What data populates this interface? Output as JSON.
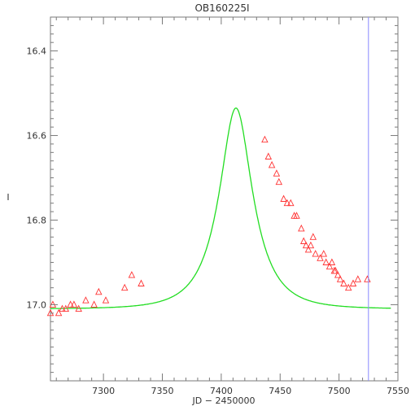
{
  "chart_data": {
    "type": "scatter",
    "title": "OB160225I",
    "xlabel": "JD − 2450000",
    "ylabel": "I",
    "xlim": [
      7255,
      7550
    ],
    "ylim": [
      17.18,
      16.32
    ],
    "y_inverted": true,
    "x_ticks": [
      7300,
      7350,
      7400,
      7450,
      7500,
      7550
    ],
    "x_tick_labels": [
      "7300",
      "7350",
      "7400",
      "7450",
      "7500",
      "7550"
    ],
    "y_ticks": [
      16.4,
      16.6,
      16.8,
      17.0
    ],
    "y_tick_labels": [
      "16.4",
      "16.6",
      "16.8",
      "17.0"
    ],
    "grid": false,
    "colors": {
      "data": "#ff3333",
      "model": "#22dd22",
      "marker_line": "#8888ff",
      "frame": "#7a7a7a"
    },
    "vertical_line_x": 7525,
    "model": {
      "t0": 7412.5,
      "baseline": 17.01,
      "peak": 16.535,
      "tE": 30,
      "u0": 0.49
    },
    "series": [
      {
        "marker": "open-triangle",
        "x": [
          7255,
          7257,
          7262,
          7265,
          7268,
          7272,
          7275,
          7279,
          7285,
          7292,
          7296,
          7302,
          7318,
          7324,
          7332,
          7437,
          7440,
          7443,
          7447,
          7449,
          7453,
          7456,
          7459,
          7462,
          7464,
          7468,
          7470,
          7472,
          7474,
          7476,
          7478,
          7480,
          7484,
          7487,
          7489,
          7492,
          7494,
          7496,
          7497,
          7499,
          7501,
          7504,
          7508,
          7512,
          7516,
          7524
        ],
        "y": [
          17.02,
          17.0,
          17.02,
          17.01,
          17.01,
          17.0,
          17.0,
          17.01,
          16.99,
          17.0,
          16.97,
          16.99,
          16.96,
          16.93,
          16.95,
          16.61,
          16.65,
          16.67,
          16.69,
          16.71,
          16.75,
          16.76,
          16.76,
          16.79,
          16.79,
          16.82,
          16.85,
          16.86,
          16.87,
          16.86,
          16.84,
          16.88,
          16.89,
          16.88,
          16.9,
          16.91,
          16.9,
          16.92,
          16.92,
          16.93,
          16.94,
          16.95,
          16.96,
          16.95,
          16.94,
          16.94
        ]
      }
    ]
  }
}
